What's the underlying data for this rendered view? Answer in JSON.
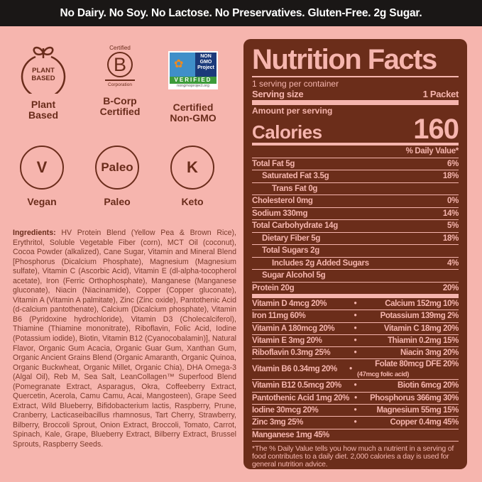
{
  "banner": "No Dairy.  No Soy.  No Lactose.  No Preservatives.  Gluten-Free.  2g Sugar.",
  "badges": [
    {
      "icon": "plant-based-icon",
      "icon_text": "PLANT BASED",
      "label": "Plant Based"
    },
    {
      "icon": "b-corp-icon",
      "icon_top": "Certified",
      "icon_text": "B",
      "icon_bottom": "Corporation",
      "label": "B-Corp Certified"
    },
    {
      "icon": "non-gmo-icon",
      "icon_text": "NON GMO Project",
      "icon_verified": "VERIFIED",
      "icon_url": "nongmoproject.org",
      "label": "Certified Non-GMO"
    },
    {
      "icon": "vegan-icon",
      "icon_text": "V",
      "label": "Vegan"
    },
    {
      "icon": "paleo-icon",
      "icon_text": "Paleo",
      "label": "Paleo"
    },
    {
      "icon": "keto-icon",
      "icon_text": "K",
      "label": "Keto"
    }
  ],
  "ingredients": {
    "heading": "Ingredients:",
    "text": "HV Protein Blend (Yellow Pea & Brown Rice), Erythritol, Soluble Vegetable Fiber (corn), MCT Oil (coconut), Cocoa Powder (alkalized), Cane Sugar, Vitamin and Mineral Blend [Phosphorus (Dicalcium Phosphate), Magnesium (Magnesium sulfate), Vitamin C (Ascorbic Acid), Vitamin E (dl-alpha-tocopherol acetate), Iron (Ferric Orthophosphate), Manganese (Manganese gluconate), Niacin (Niacinamide), Copper (Copper gluconate), Vitamin A (Vitamin A palmitate), Zinc (Zinc oxide), Pantothenic Acid (d-calcium pantothenate), Calcium (Dicalcium phosphate), Vitamin B6 (Pyridoxine hydrochloride), Vitamin D3 (Cholecalciferol), Thiamine (Thiamine mononitrate), Riboflavin, Folic Acid, Iodine (Potassium iodide), Biotin, Vitamin B12 (Cyanocobalamin)], Natural Flavor, Organic Gum Acacia, Organic Guar Gum, Xanthan Gum, Organic Ancient Grains Blend (Organic Amaranth, Organic Quinoa, Organic Buckwheat, Organic Millet, Organic Chia), DHA Omega-3 (Algal Oil), Reb M, Sea Salt, LeanCollagen™ Superfood Blend (Pomegranate Extract, Asparagus, Okra, Coffeeberry Extract, Quercetin, Acerola, Camu Camu, Acai, Mangosteen), Grape Seed Extract, Wild Blueberry, Bifidobacterium lactis, Raspberry, Prune, Cranberry, Lacticaseibacillus rhamnosus, Tart Cherry, Strawberry, Bilberry, Broccoli Sprout, Onion Extract, Broccoli, Tomato, Carrot, Spinach, Kale, Grape, Blueberry Extract, Bilberry Extract, Brussel Sprouts, Raspberry Seeds."
  },
  "nutrition": {
    "title": "Nutrition Facts",
    "servings": "1 serving per container",
    "serving_size_label": "Serving size",
    "serving_size": "1 Packet",
    "amount_per_serving": "Amount per serving",
    "calories_label": "Calories",
    "calories": "160",
    "dv_header": "% Daily Value*",
    "rows": [
      {
        "label": "Total Fat 5g",
        "dv": "6%"
      },
      {
        "label": "Saturated Fat 3.5g",
        "dv": "18%"
      },
      {
        "label": "Trans Fat 0g",
        "dv": ""
      },
      {
        "label": "Cholesterol 0mg",
        "dv": "0%"
      },
      {
        "label": "Sodium 330mg",
        "dv": "14%"
      },
      {
        "label": "Total Carbohydrate 14g",
        "dv": "5%"
      },
      {
        "label": "Dietary Fiber 5g",
        "dv": "18%"
      },
      {
        "label": "Total Sugars 2g",
        "dv": ""
      },
      {
        "label": "Includes 2g Added Sugars",
        "dv": "4%"
      },
      {
        "label": "Sugar Alcohol 5g",
        "dv": ""
      },
      {
        "label": "Protein 20g",
        "dv": "20%"
      }
    ],
    "vitamins": [
      {
        "left": "Vitamin D 4mcg 20%",
        "right": "Calcium 152mg 10%"
      },
      {
        "left": "Iron 11mg 60%",
        "right": "Potassium 139mg 2%"
      },
      {
        "left": "Vitamin A 180mcg 20%",
        "right": "Vitamin C 18mg 20%"
      },
      {
        "left": "Vitamin E 3mg 20%",
        "right": "Thiamin 0.2mg 15%"
      },
      {
        "left": "Riboflavin 0.3mg 25%",
        "right": "Niacin 3mg 20%"
      },
      {
        "left": "Vitamin B6 0.34mg 20%",
        "right": "Folate 80mcg DFE 20%",
        "right_sub": "(47mcg folic acid)"
      },
      {
        "left": "Vitamin B12 0.5mcg 20%",
        "right": "Biotin 6mcg 20%"
      },
      {
        "left": "Pantothenic Acid 1mg 20%",
        "right": "Phosphorus 366mg 30%"
      },
      {
        "left": "Iodine 30mcg 20%",
        "right": "Magnesium 55mg 15%"
      },
      {
        "left": "Zinc 3mg 25%",
        "right": "Copper 0.4mg 45%"
      },
      {
        "left": "Manganese 1mg 45%",
        "right": ""
      }
    ],
    "bullet": "•",
    "footnote": "*The % Daily Value tells you how much a nutrient in a serving of food contributes to a daily diet. 2,000 calories a day is used for general nutrition advice."
  },
  "colors": {
    "background": "#f6b5ae",
    "brown": "#6b2d1a",
    "banner": "#1a1716"
  }
}
